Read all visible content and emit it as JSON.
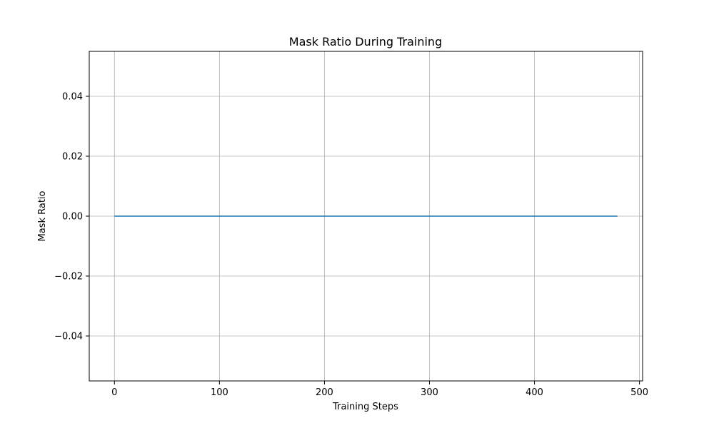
{
  "chart_data": {
    "type": "line",
    "title": "Mask Ratio During Training",
    "xlabel": "Training Steps",
    "ylabel": "Mask Ratio",
    "xlim": [
      -24,
      503
    ],
    "ylim": [
      -0.055,
      0.055
    ],
    "xticks": [
      0,
      100,
      200,
      300,
      400,
      500
    ],
    "xtick_labels": [
      "0",
      "100",
      "200",
      "300",
      "400",
      "500"
    ],
    "yticks": [
      -0.04,
      -0.02,
      0.0,
      0.02,
      0.04
    ],
    "ytick_labels": [
      "−0.04",
      "−0.02",
      "0.00",
      "0.02",
      "0.04"
    ],
    "grid": true,
    "series": [
      {
        "color": "#1f77b4",
        "x": [
          0,
          479
        ],
        "y": [
          0.0,
          0.0
        ]
      }
    ]
  }
}
